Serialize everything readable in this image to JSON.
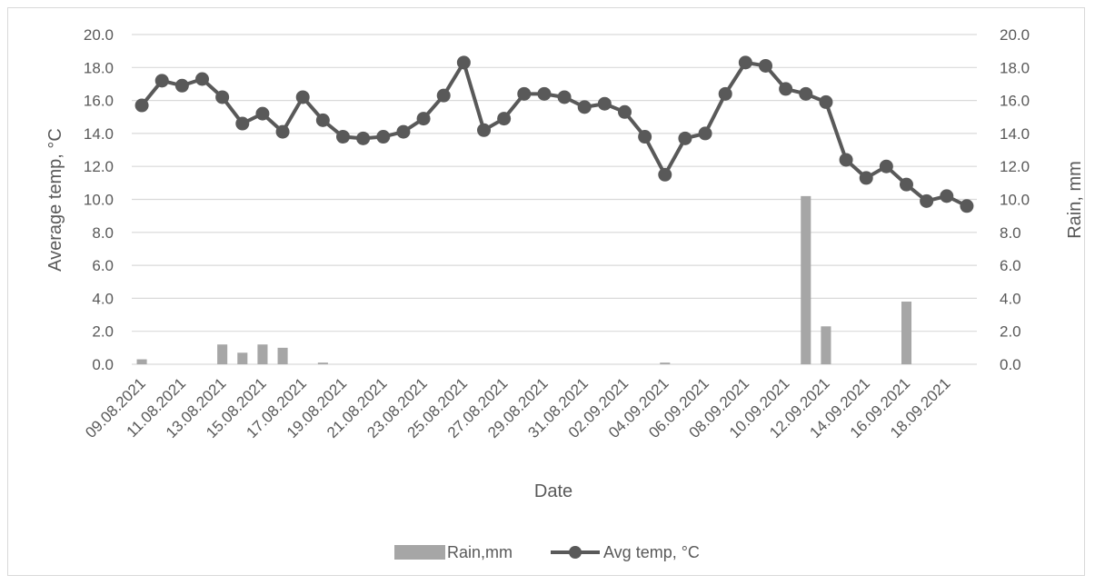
{
  "chart_data": {
    "type": "bar+line",
    "xlabel": "Date",
    "ylabel_left": "Average temp, °C",
    "ylabel_right": "Rain, mm",
    "ylim_left": [
      0,
      20
    ],
    "ylim_right": [
      0,
      20
    ],
    "y_ticks": [
      "0.0",
      "2.0",
      "4.0",
      "6.0",
      "8.0",
      "10.0",
      "12.0",
      "14.0",
      "16.0",
      "18.0",
      "20.0"
    ],
    "x_tick_labels": [
      "09.08.2021",
      "11.08.2021",
      "13.08.2021",
      "15.08.2021",
      "17.08.2021",
      "19.08.2021",
      "21.08.2021",
      "23.08.2021",
      "25.08.2021",
      "27.08.2021",
      "29.08.2021",
      "31.08.2021",
      "02.09.2021",
      "04.09.2021",
      "06.09.2021",
      "08.09.2021",
      "10.09.2021",
      "12.09.2021",
      "14.09.2021",
      "16.09.2021",
      "18.09.2021"
    ],
    "grid": true,
    "legend_position": "bottom",
    "dates": [
      "09.08.2021",
      "10.08.2021",
      "11.08.2021",
      "12.08.2021",
      "13.08.2021",
      "14.08.2021",
      "15.08.2021",
      "16.08.2021",
      "17.08.2021",
      "18.08.2021",
      "19.08.2021",
      "20.08.2021",
      "21.08.2021",
      "22.08.2021",
      "23.08.2021",
      "24.08.2021",
      "25.08.2021",
      "26.08.2021",
      "27.08.2021",
      "28.08.2021",
      "29.08.2021",
      "30.08.2021",
      "31.08.2021",
      "01.09.2021",
      "02.09.2021",
      "03.09.2021",
      "04.09.2021",
      "05.09.2021",
      "06.09.2021",
      "07.09.2021",
      "08.09.2021",
      "09.09.2021",
      "10.09.2021",
      "11.09.2021",
      "12.09.2021",
      "13.09.2021",
      "14.09.2021",
      "15.09.2021",
      "16.09.2021",
      "17.09.2021",
      "18.09.2021",
      "19.09.2021"
    ],
    "series": [
      {
        "name": "Rain,mm",
        "type": "bar",
        "axis": "right",
        "color": "#a6a6a6",
        "values": [
          0.3,
          0,
          0,
          0,
          1.2,
          0.7,
          1.2,
          1.0,
          0,
          0.1,
          0,
          0,
          0,
          0,
          0,
          0,
          0,
          0,
          0,
          0,
          0,
          0,
          0,
          0,
          0,
          0,
          0.1,
          0,
          0,
          0,
          0,
          0,
          0,
          10.2,
          2.3,
          0,
          0,
          0,
          3.8,
          0,
          0,
          0
        ]
      },
      {
        "name": "Avg temp, °C",
        "type": "line",
        "axis": "left",
        "color": "#595959",
        "values": [
          15.7,
          17.2,
          16.9,
          17.3,
          16.2,
          14.6,
          15.2,
          14.1,
          16.2,
          14.8,
          13.8,
          13.7,
          13.8,
          14.1,
          14.9,
          16.3,
          18.3,
          14.2,
          14.9,
          16.4,
          16.4,
          16.2,
          15.6,
          15.8,
          15.3,
          13.8,
          11.5,
          13.7,
          14.0,
          16.4,
          18.3,
          18.1,
          16.7,
          16.4,
          15.9,
          12.4,
          11.3,
          12.0,
          10.9,
          9.9,
          10.2,
          9.6
        ]
      }
    ]
  }
}
